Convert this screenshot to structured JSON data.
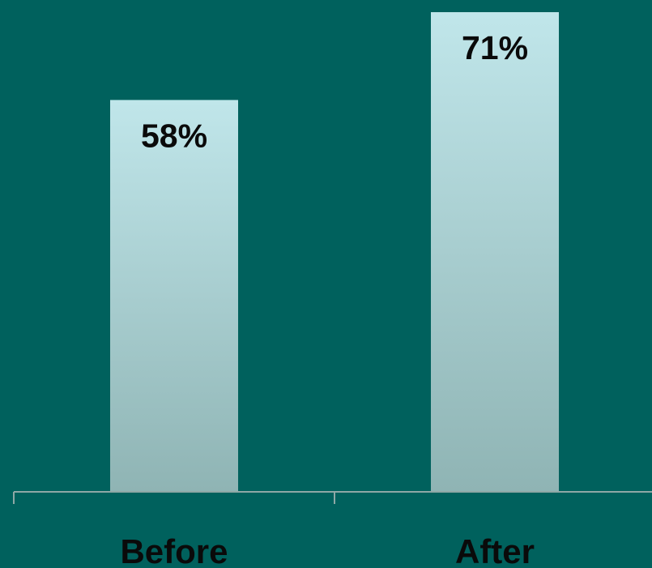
{
  "chart_data": {
    "type": "bar",
    "categories": [
      "Before",
      "After"
    ],
    "values": [
      58,
      71
    ],
    "data_labels": [
      "58%",
      "71%"
    ],
    "title": "",
    "xlabel": "",
    "ylabel": "",
    "ylim": [
      0,
      72.8
    ],
    "grid": false,
    "legend": "none"
  },
  "colors": {
    "background": "#00615d",
    "bar_top": "#c0e6ea",
    "bar_bottom": "#8fb4b4",
    "axis": "#8fa8a6",
    "text": "#0a0a0a"
  }
}
